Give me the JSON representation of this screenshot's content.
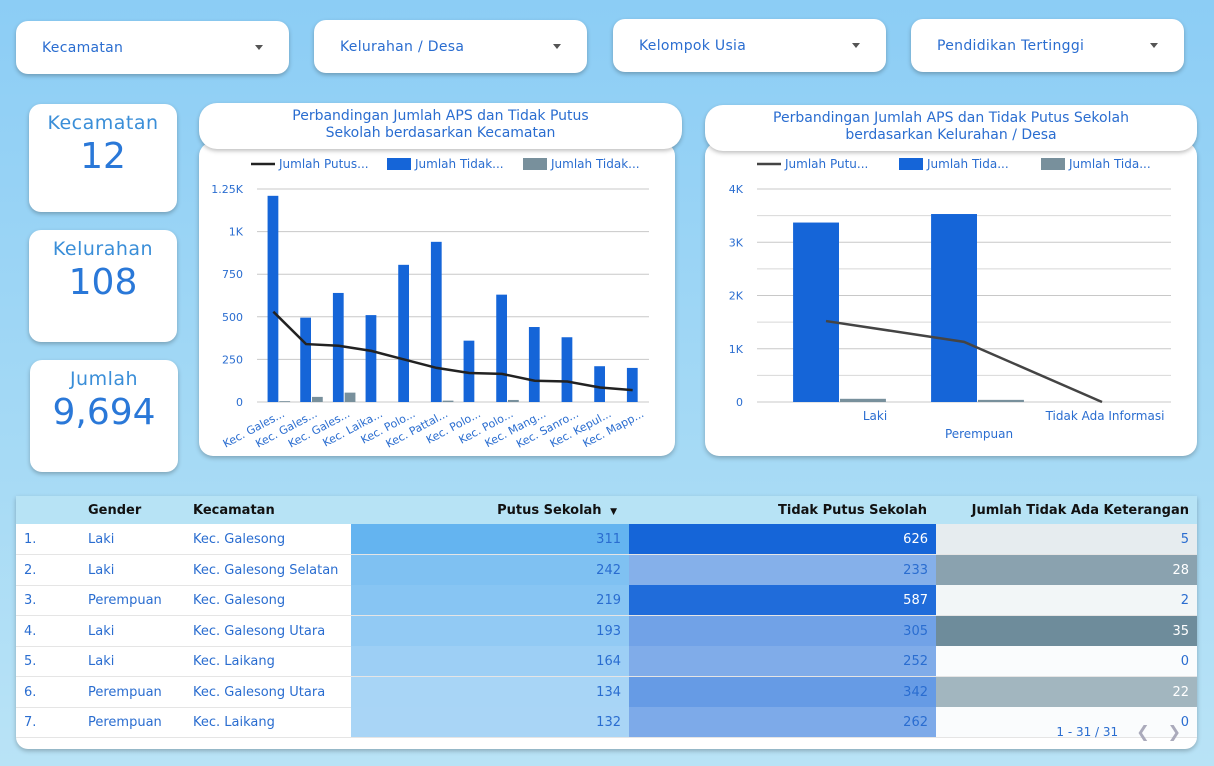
{
  "filters": [
    {
      "label": "Kecamatan"
    },
    {
      "label": "Kelurahan / Desa"
    },
    {
      "label": "Kelompok Usia"
    },
    {
      "label": "Pendidikan Tertinggi"
    }
  ],
  "kpis": [
    {
      "title": "Kecamatan",
      "value": "12"
    },
    {
      "title": "Kelurahan",
      "value": "108"
    },
    {
      "title": "Jumlah",
      "value": "9,694"
    }
  ],
  "chart_data": [
    {
      "type": "bar",
      "title": "Perbandingan Jumlah APS dan Tidak Putus Sekolah berdasarkan Kecamatan",
      "categories": [
        "Kec. Gales...",
        "Kec. Gales...",
        "Kec. Gales...",
        "Kec. Laika...",
        "Kec. Polo...",
        "Kec. Pattal...",
        "Kec. Polo...",
        "Kec. Polo...",
        "Kec. Mang...",
        "Kec. Sanro...",
        "Kec. Kepul...",
        "Kec. Mapp..."
      ],
      "series": [
        {
          "name": "Jumlah Putus...",
          "kind": "line",
          "color": "#222222",
          "values": [
            530,
            340,
            330,
            300,
            250,
            200,
            170,
            165,
            125,
            120,
            85,
            70
          ]
        },
        {
          "name": "Jumlah Tidak...",
          "kind": "bar",
          "color": "#1565d8",
          "values": [
            1210,
            495,
            640,
            510,
            805,
            940,
            360,
            630,
            440,
            380,
            210,
            200
          ]
        },
        {
          "name": "Jumlah Tidak...",
          "kind": "bar",
          "color": "#78909c",
          "values": [
            5,
            30,
            55,
            0,
            0,
            8,
            0,
            12,
            0,
            0,
            0,
            0
          ]
        }
      ],
      "yticks": [
        "0",
        "250",
        "500",
        "750",
        "1K",
        "1.25K"
      ],
      "ylim": [
        0,
        1250
      ],
      "legend_position": "top"
    },
    {
      "type": "bar",
      "title": "Perbandingan Jumlah APS dan Tidak Putus Sekolah berdasarkan Kelurahan / Desa",
      "categories": [
        "Laki",
        "Perempuan",
        "Tidak Ada Informasi"
      ],
      "series": [
        {
          "name": "Jumlah Putu...",
          "kind": "line",
          "color": "#444444",
          "values": [
            1520,
            1130,
            0
          ]
        },
        {
          "name": "Jumlah Tida...",
          "kind": "bar",
          "color": "#1565d8",
          "values": [
            3370,
            3530,
            0
          ]
        },
        {
          "name": "Jumlah Tida...",
          "kind": "bar",
          "color": "#78909c",
          "values": [
            60,
            40,
            0
          ]
        }
      ],
      "yticks": [
        "0",
        "1K",
        "2K",
        "3K",
        "4K"
      ],
      "ylim": [
        0,
        4000
      ],
      "legend_position": "top"
    }
  ],
  "table": {
    "headers": [
      "Gender",
      "Kecamatan",
      "Putus Sekolah",
      "Tidak Putus Sekolah",
      "Jumlah Tidak Ada Keterangan"
    ],
    "sort_icon": "sort-desc-icon",
    "rows": [
      {
        "idx": "1.",
        "gender": "Laki",
        "kec": "Kec. Galesong",
        "putus": "311",
        "tidak": "626",
        "ket": "5"
      },
      {
        "idx": "2.",
        "gender": "Laki",
        "kec": "Kec. Galesong Selatan",
        "putus": "242",
        "tidak": "233",
        "ket": "28"
      },
      {
        "idx": "3.",
        "gender": "Perempuan",
        "kec": "Kec. Galesong",
        "putus": "219",
        "tidak": "587",
        "ket": "2"
      },
      {
        "idx": "4.",
        "gender": "Laki",
        "kec": "Kec. Galesong Utara",
        "putus": "193",
        "tidak": "305",
        "ket": "35"
      },
      {
        "idx": "5.",
        "gender": "Laki",
        "kec": "Kec. Laikang",
        "putus": "164",
        "tidak": "252",
        "ket": "0"
      },
      {
        "idx": "6.",
        "gender": "Perempuan",
        "kec": "Kec. Galesong Utara",
        "putus": "134",
        "tidak": "342",
        "ket": "22"
      },
      {
        "idx": "7.",
        "gender": "Perempuan",
        "kec": "Kec. Laikang",
        "putus": "132",
        "tidak": "262",
        "ket": "0"
      }
    ],
    "pagination": "1 - 31 / 31"
  }
}
